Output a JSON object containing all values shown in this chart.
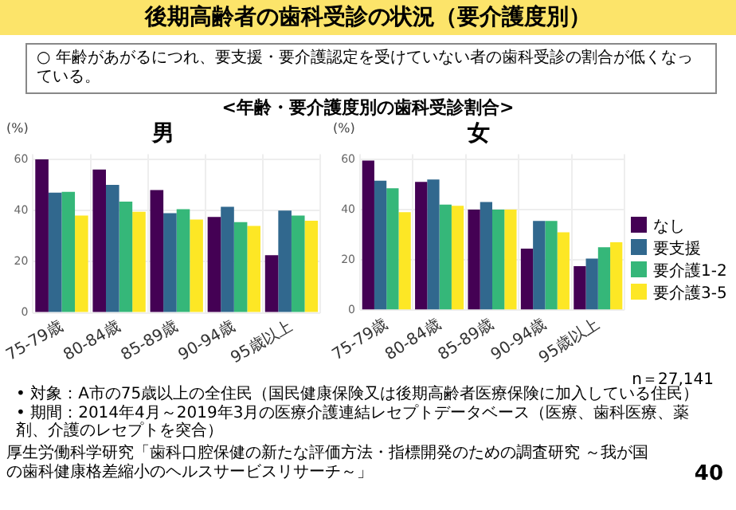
{
  "chart_data": [
    {
      "type": "other",
      "title": "後期高齢者の歯科受診の状況（要介護度別）",
      "subtitle": "<年齢・要介護度別の歯科受診割合>",
      "annotations": [
        "○ 年齢があがるにつれ、要支援・要介護認定を受けていない者の歯科受診の割合が低くなっている。",
        "n＝27,141",
        "• 対象：A市の75歳以上の全住民（国民健康保険又は後期高齢者医療保険に加入している住民）",
        "• 期間：2014年4月～2019年3月の医療介護連結レセプトデータベース（医療、歯科医療、薬剤、介護のレセプトを突合）",
        "厚生労働科学研究「歯科口腔保健の新たな評価方法・指標開発のための調査研究 ～我が国の歯科健康格差縮小のヘルスサービスリサーチ～」",
        "40"
      ]
    },
    {
      "type": "bar",
      "title": "男",
      "ylabel": "(%)",
      "categories": [
        "75-79歳",
        "80-84歳",
        "85-89歳",
        "90-94歳",
        "95歳以上"
      ],
      "ylim": [
        0,
        62
      ],
      "yticks": [
        0,
        20,
        40,
        60
      ],
      "grid": true,
      "legend": false,
      "series": [
        {
          "color": "#440154",
          "values": [
            60,
            56,
            48,
            37.5,
            22.5
          ]
        },
        {
          "color": "#31688e",
          "values": [
            47,
            50,
            39,
            41.5,
            40
          ]
        },
        {
          "color": "#35b779",
          "values": [
            47.3,
            43.5,
            40.5,
            35.5,
            38
          ]
        },
        {
          "color": "#fde725",
          "values": [
            38,
            39.5,
            36.5,
            34,
            36
          ]
        }
      ]
    },
    {
      "type": "bar",
      "title": "女",
      "ylabel": "(%)",
      "categories": [
        "75-79歳",
        "80-84歳",
        "85-89歳",
        "90-94歳",
        "95歳以上"
      ],
      "ylim": [
        0,
        62
      ],
      "yticks": [
        0,
        20,
        40,
        60
      ],
      "grid": true,
      "legend": "right",
      "series": [
        {
          "name": "なし",
          "color": "#440154",
          "values": [
            59.5,
            51,
            40,
            24.5,
            17.5
          ]
        },
        {
          "name": "要支援",
          "color": "#31688e",
          "values": [
            51.5,
            52,
            43,
            35.5,
            20.5
          ]
        },
        {
          "name": "要介護1-2",
          "color": "#35b779",
          "values": [
            48.5,
            42,
            40,
            35.5,
            25
          ]
        },
        {
          "name": "要介護3-5",
          "color": "#fde725",
          "values": [
            39,
            41.5,
            40,
            31,
            27
          ]
        }
      ]
    }
  ]
}
